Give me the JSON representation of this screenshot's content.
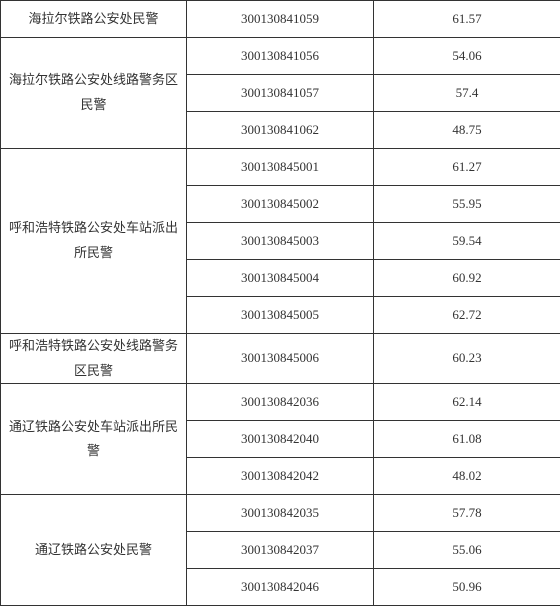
{
  "rows": [
    {
      "label": "海拉尔铁路公安处民警",
      "code": "300130841059",
      "score": "61.57",
      "rowspan": 1
    },
    {
      "label": "海拉尔铁路公安处线路警务区民警",
      "code": "300130841056",
      "score": "54.06",
      "rowspan": 3
    },
    {
      "code": "300130841057",
      "score": "57.4"
    },
    {
      "code": "300130841062",
      "score": "48.75"
    },
    {
      "label": "呼和浩特铁路公安处车站派出所民警",
      "code": "300130845001",
      "score": "61.27",
      "rowspan": 5
    },
    {
      "code": "300130845002",
      "score": "55.95"
    },
    {
      "code": "300130845003",
      "score": "59.54"
    },
    {
      "code": "300130845004",
      "score": "60.92"
    },
    {
      "code": "300130845005",
      "score": "62.72"
    },
    {
      "label": "呼和浩特铁路公安处线路警务区民警",
      "code": "300130845006",
      "score": "60.23",
      "rowspan": 1
    },
    {
      "label": "通辽铁路公安处车站派出所民警",
      "code": "300130842036",
      "score": "62.14",
      "rowspan": 3
    },
    {
      "code": "300130842040",
      "score": "61.08"
    },
    {
      "code": "300130842042",
      "score": "48.02"
    },
    {
      "label": "通辽铁路公安处民警",
      "code": "300130842035",
      "score": "57.78",
      "rowspan": 3
    },
    {
      "code": "300130842037",
      "score": "55.06"
    },
    {
      "code": "300130842046",
      "score": "50.96"
    }
  ],
  "style": {
    "border_color": "#333333",
    "text_color": "#333333",
    "bg": "#ffffff",
    "font_family": "SimSun"
  }
}
